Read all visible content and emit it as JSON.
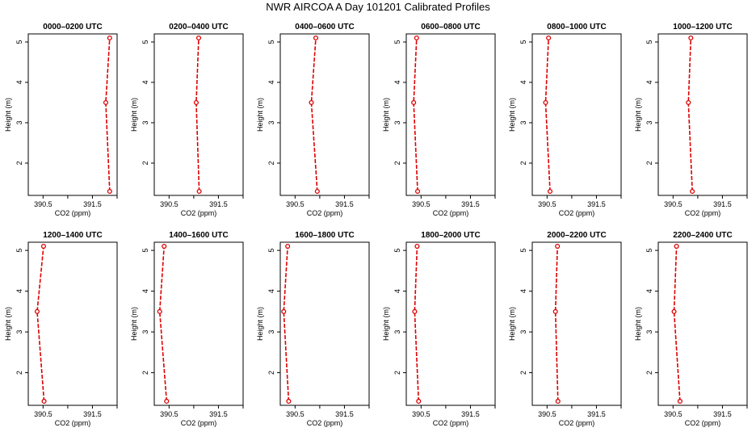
{
  "title": "NWR AIRCOA A  Day 101201  Calibrated Profiles",
  "chart_data": {
    "type": "line",
    "xlabel": "CO2 (ppm)",
    "ylabel": "Height (m)",
    "xlim": [
      390.2,
      392.0
    ],
    "ylim": [
      1.2,
      5.2
    ],
    "xticks": [
      390.5,
      391.5
    ],
    "yticks": [
      2,
      3,
      4,
      5
    ],
    "grid": false,
    "series_color": "#dd0000",
    "panels": [
      {
        "title": "0000–0200 UTC",
        "points": [
          {
            "x": 391.85,
            "y": 1.3
          },
          {
            "x": 391.77,
            "y": 3.5
          },
          {
            "x": 391.85,
            "y": 5.1
          }
        ]
      },
      {
        "title": "0200–0400 UTC",
        "points": [
          {
            "x": 391.11,
            "y": 1.3
          },
          {
            "x": 391.05,
            "y": 3.5
          },
          {
            "x": 391.1,
            "y": 5.1
          }
        ]
      },
      {
        "title": "0400–0600 UTC",
        "points": [
          {
            "x": 390.95,
            "y": 1.3
          },
          {
            "x": 390.83,
            "y": 3.5
          },
          {
            "x": 390.92,
            "y": 5.1
          }
        ]
      },
      {
        "title": "0600–0800 UTC",
        "points": [
          {
            "x": 390.43,
            "y": 1.3
          },
          {
            "x": 390.35,
            "y": 3.5
          },
          {
            "x": 390.41,
            "y": 5.1
          }
        ]
      },
      {
        "title": "0800–1000 UTC",
        "points": [
          {
            "x": 390.56,
            "y": 1.3
          },
          {
            "x": 390.47,
            "y": 3.5
          },
          {
            "x": 390.53,
            "y": 5.1
          }
        ]
      },
      {
        "title": "1000–1200 UTC",
        "points": [
          {
            "x": 390.89,
            "y": 1.3
          },
          {
            "x": 390.81,
            "y": 3.5
          },
          {
            "x": 390.86,
            "y": 5.1
          }
        ]
      },
      {
        "title": "1200–1400 UTC",
        "points": [
          {
            "x": 390.52,
            "y": 1.3
          },
          {
            "x": 390.38,
            "y": 3.5
          },
          {
            "x": 390.51,
            "y": 5.1
          }
        ]
      },
      {
        "title": "1400–1600 UTC",
        "points": [
          {
            "x": 390.45,
            "y": 1.3
          },
          {
            "x": 390.31,
            "y": 3.5
          },
          {
            "x": 390.4,
            "y": 5.1
          }
        ]
      },
      {
        "title": "1600–1800 UTC",
        "points": [
          {
            "x": 390.37,
            "y": 1.3
          },
          {
            "x": 390.27,
            "y": 3.5
          },
          {
            "x": 390.35,
            "y": 5.1
          }
        ]
      },
      {
        "title": "1800–2000 UTC",
        "points": [
          {
            "x": 390.45,
            "y": 1.3
          },
          {
            "x": 390.37,
            "y": 3.5
          },
          {
            "x": 390.42,
            "y": 5.1
          }
        ]
      },
      {
        "title": "2000–2200 UTC",
        "points": [
          {
            "x": 390.72,
            "y": 1.3
          },
          {
            "x": 390.67,
            "y": 3.5
          },
          {
            "x": 390.71,
            "y": 5.1
          }
        ]
      },
      {
        "title": "2200–2400 UTC",
        "points": [
          {
            "x": 390.64,
            "y": 1.3
          },
          {
            "x": 390.52,
            "y": 3.5
          },
          {
            "x": 390.57,
            "y": 5.1
          }
        ]
      }
    ]
  }
}
